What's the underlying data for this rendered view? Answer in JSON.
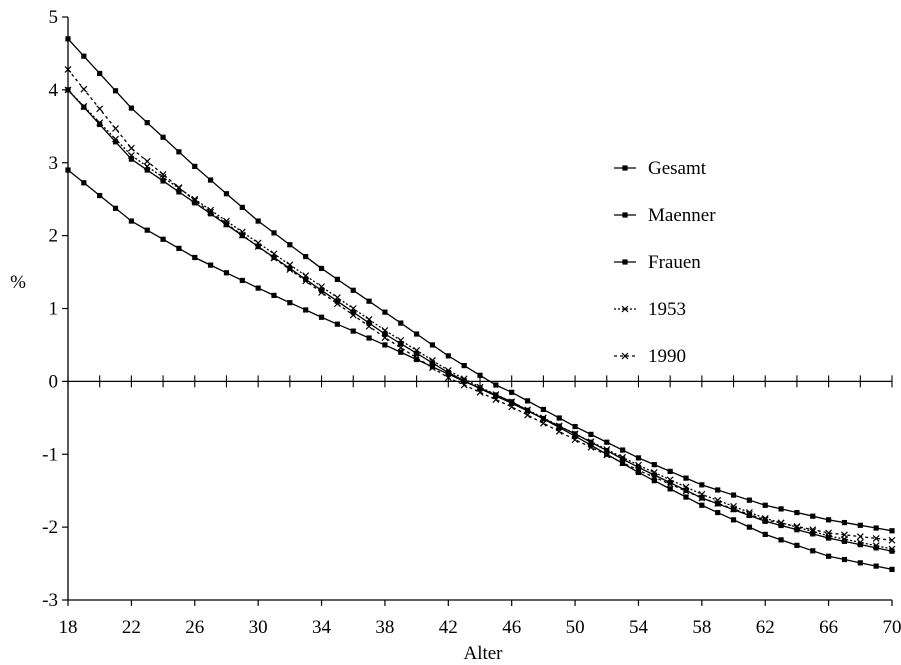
{
  "chart_data": {
    "type": "line",
    "title": "",
    "xlabel": "Alter",
    "ylabel": "%",
    "xlim": [
      18,
      70
    ],
    "ylim": [
      -3,
      5
    ],
    "x_ticks": [
      18,
      22,
      26,
      30,
      34,
      38,
      42,
      46,
      50,
      54,
      58,
      62,
      66,
      70
    ],
    "y_ticks": [
      -3,
      -2,
      -1,
      0,
      1,
      2,
      3,
      4,
      5
    ],
    "grid": false,
    "legend_position": "right",
    "x_step": 1,
    "series": [
      {
        "name": "Gesamt",
        "marker": "square",
        "dash": "",
        "anchors": [
          [
            18,
            4.0
          ],
          [
            22,
            3.05
          ],
          [
            26,
            2.45
          ],
          [
            30,
            1.85
          ],
          [
            34,
            1.25
          ],
          [
            38,
            0.65
          ],
          [
            42,
            0.12
          ],
          [
            44,
            -0.1
          ],
          [
            46,
            -0.3
          ],
          [
            50,
            -0.72
          ],
          [
            54,
            -1.18
          ],
          [
            58,
            -1.6
          ],
          [
            62,
            -1.92
          ],
          [
            66,
            -2.15
          ],
          [
            70,
            -2.33
          ]
        ]
      },
      {
        "name": "Maenner",
        "marker": "square",
        "dash": "",
        "anchors": [
          [
            18,
            4.7
          ],
          [
            22,
            3.75
          ],
          [
            26,
            2.95
          ],
          [
            30,
            2.2
          ],
          [
            34,
            1.55
          ],
          [
            38,
            0.95
          ],
          [
            42,
            0.35
          ],
          [
            45,
            -0.05
          ],
          [
            46,
            -0.15
          ],
          [
            50,
            -0.62
          ],
          [
            54,
            -1.05
          ],
          [
            58,
            -1.42
          ],
          [
            62,
            -1.7
          ],
          [
            66,
            -1.9
          ],
          [
            70,
            -2.05
          ]
        ]
      },
      {
        "name": "Frauen",
        "marker": "square",
        "dash": "",
        "anchors": [
          [
            18,
            2.9
          ],
          [
            22,
            2.2
          ],
          [
            26,
            1.7
          ],
          [
            30,
            1.28
          ],
          [
            34,
            0.88
          ],
          [
            38,
            0.5
          ],
          [
            42,
            0.1
          ],
          [
            43,
            0.0
          ],
          [
            46,
            -0.28
          ],
          [
            50,
            -0.75
          ],
          [
            54,
            -1.25
          ],
          [
            58,
            -1.7
          ],
          [
            62,
            -2.1
          ],
          [
            66,
            -2.4
          ],
          [
            70,
            -2.58
          ]
        ]
      },
      {
        "name": "1953",
        "marker": "cross",
        "dash": "2,2",
        "anchors": [
          [
            18,
            4.0
          ],
          [
            22,
            3.1
          ],
          [
            26,
            2.5
          ],
          [
            30,
            1.9
          ],
          [
            34,
            1.3
          ],
          [
            38,
            0.7
          ],
          [
            42,
            0.15
          ],
          [
            44,
            -0.08
          ],
          [
            46,
            -0.28
          ],
          [
            50,
            -0.72
          ],
          [
            54,
            -1.15
          ],
          [
            58,
            -1.55
          ],
          [
            62,
            -1.88
          ],
          [
            66,
            -2.12
          ],
          [
            70,
            -2.3
          ]
        ]
      },
      {
        "name": "1990",
        "marker": "cross",
        "dash": "3,3",
        "anchors": [
          [
            18,
            4.28
          ],
          [
            22,
            3.2
          ],
          [
            26,
            2.48
          ],
          [
            30,
            1.85
          ],
          [
            34,
            1.22
          ],
          [
            38,
            0.6
          ],
          [
            42,
            0.05
          ],
          [
            44,
            -0.15
          ],
          [
            46,
            -0.35
          ],
          [
            50,
            -0.8
          ],
          [
            54,
            -1.22
          ],
          [
            58,
            -1.6
          ],
          [
            62,
            -1.9
          ],
          [
            66,
            -2.08
          ],
          [
            70,
            -2.18
          ]
        ]
      }
    ]
  }
}
